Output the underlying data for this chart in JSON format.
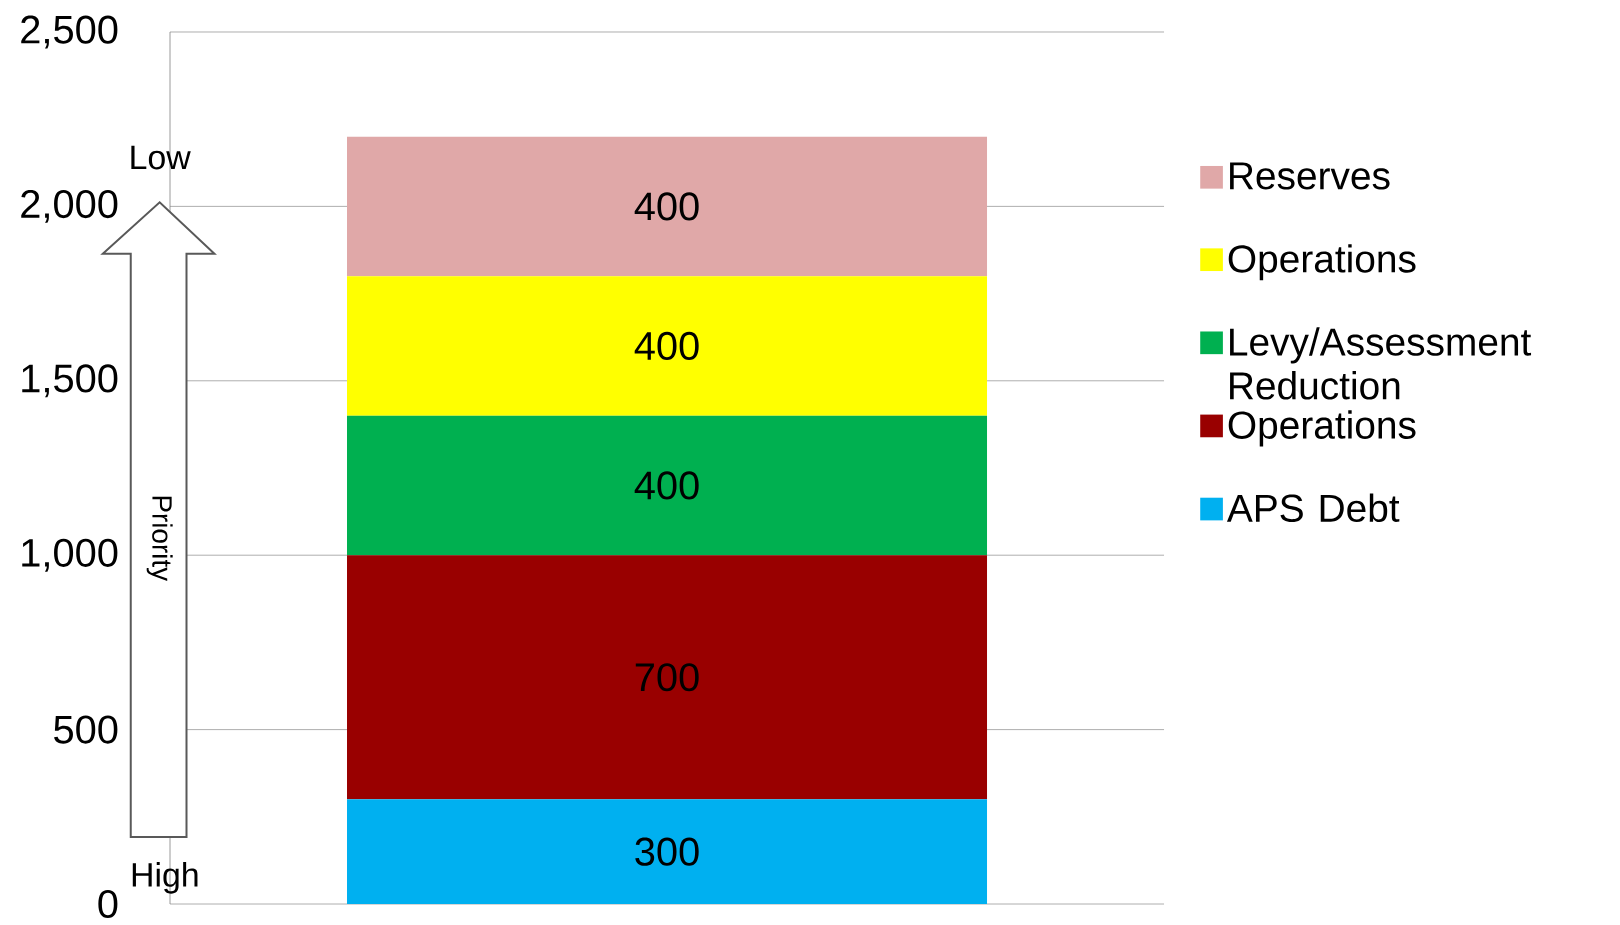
{
  "chart_data": {
    "type": "bar",
    "stacked": true,
    "categories": [
      null
    ],
    "series": [
      {
        "name": "APS Debt",
        "color": "#00b0f0",
        "values": [
          300
        ],
        "value_labels": [
          "300"
        ]
      },
      {
        "name": "Operations",
        "color": "#990000",
        "values": [
          700
        ],
        "value_labels": [
          "700"
        ]
      },
      {
        "name": "Levy/Assessment Reduction",
        "color": "#00b050",
        "values": [
          400
        ],
        "value_labels": [
          "400"
        ]
      },
      {
        "name": "Operations",
        "color": "#ffff00",
        "values": [
          400
        ],
        "value_labels": [
          "400"
        ]
      },
      {
        "name": "Reserves",
        "color": "#e0a8a8",
        "values": [
          400
        ],
        "value_labels": [
          "400"
        ]
      }
    ],
    "ylim": [
      0,
      2500
    ],
    "yticks": [
      0,
      {
        "value": 500,
        "label": "500"
      },
      {
        "value": 1000,
        "label": "1,000"
      },
      {
        "value": 1500,
        "label": "1,500"
      },
      {
        "value": 2000,
        "label": "2,000"
      },
      {
        "value": 2500,
        "label": "2,500"
      }
    ],
    "grid": "y",
    "legend": "right",
    "annotations": [
      "Low",
      "High",
      "Priority"
    ]
  }
}
